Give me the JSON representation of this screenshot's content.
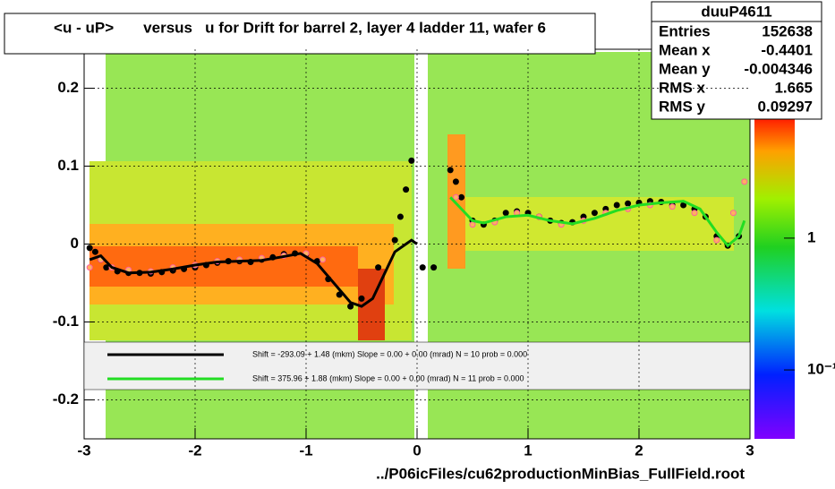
{
  "chart_data": {
    "type": "scatter",
    "title": "<u - uP>       versus   u for Drift for barrel 2, layer 4 ladder 11, wafer 6",
    "xlabel": "../P06icFiles/cu62productionMinBias_FullField.root",
    "xlim": [
      -3,
      3
    ],
    "ylim": [
      -0.25,
      0.25
    ],
    "xticks": [
      -3,
      -2,
      -1,
      0,
      1,
      2,
      3
    ],
    "yticks": [
      -0.2,
      -0.1,
      0,
      0.1,
      0.2
    ],
    "grid": true,
    "zlog": true,
    "zlim": [
      0.03,
      8
    ],
    "zticks": [
      {
        "value": 1,
        "label": "1"
      },
      {
        "value": 0.1,
        "label": "10⁻¹"
      }
    ],
    "stats": {
      "title": "duuP4611",
      "rows": [
        [
          "Entries",
          "152638"
        ],
        [
          "Mean x",
          "-0.4401"
        ],
        [
          "Mean y",
          "-0.004346"
        ],
        [
          "RMS x",
          "1.665"
        ],
        [
          "RMS y",
          "0.09297"
        ]
      ]
    },
    "fit_labels": [
      "Shift =  -293.09 + 1.48 (mkm) Slope =     0.00 + 0.00 (mrad)  N = 10 prob = 0.000",
      "Shift =   375.96 + 1.88 (mkm) Slope =     0.00 + 0.00 (mrad)  N = 11 prob = 0.000"
    ],
    "series": [
      {
        "color": "#000000",
        "mark": "dot",
        "x": [
          -2.95,
          -2.9,
          -2.85,
          -2.8,
          -2.7,
          -2.6,
          -2.5,
          -2.4,
          -2.3,
          -2.2,
          -2.1,
          -2.0,
          -1.9,
          -1.8,
          -1.7,
          -1.6,
          -1.5,
          -1.4,
          -1.3,
          -1.2,
          -1.1,
          -1.0,
          -0.9,
          -0.8,
          -0.7,
          -0.6,
          -0.5,
          -0.35,
          -0.2,
          -0.15,
          -0.1,
          -0.05,
          0.05,
          0.15,
          0.3,
          0.35,
          0.4,
          0.5,
          0.6,
          0.7,
          0.8,
          0.9,
          1.0,
          1.1,
          1.2,
          1.3,
          1.4,
          1.5,
          1.6,
          1.7,
          1.8,
          1.9,
          2.0,
          2.1,
          2.2,
          2.3,
          2.4,
          2.5,
          2.6,
          2.7,
          2.8,
          2.9
        ],
        "values": [
          -0.005,
          -0.01,
          -0.02,
          -0.03,
          -0.035,
          -0.037,
          -0.037,
          -0.038,
          -0.036,
          -0.034,
          -0.032,
          -0.03,
          -0.027,
          -0.024,
          -0.022,
          -0.022,
          -0.023,
          -0.02,
          -0.017,
          -0.013,
          -0.012,
          -0.013,
          -0.022,
          -0.045,
          -0.065,
          -0.08,
          -0.07,
          -0.03,
          0.005,
          0.035,
          0.07,
          0.107,
          -0.03,
          -0.03,
          0.095,
          0.08,
          0.06,
          0.03,
          0.025,
          0.03,
          0.04,
          0.042,
          0.04,
          0.035,
          0.03,
          0.027,
          0.028,
          0.035,
          0.04,
          0.045,
          0.05,
          0.052,
          0.053,
          0.055,
          0.054,
          0.05,
          0.05,
          0.045,
          0.035,
          0.01,
          -0.002,
          0.01
        ]
      },
      {
        "color": "#ff5f9f",
        "mark": "ring",
        "x": [
          -2.95,
          -2.85,
          -2.75,
          -2.6,
          -2.4,
          -2.2,
          -2.0,
          -1.8,
          -1.6,
          -1.4,
          -1.2,
          -1.0,
          -0.85,
          0.35,
          0.5,
          0.7,
          0.9,
          1.1,
          1.3,
          1.5,
          1.7,
          1.9,
          2.1,
          2.3,
          2.5,
          2.7,
          2.85,
          2.95
        ],
        "values": [
          -0.03,
          -0.02,
          -0.03,
          -0.033,
          -0.035,
          -0.03,
          -0.027,
          -0.022,
          -0.02,
          -0.018,
          -0.015,
          -0.012,
          -0.02,
          0.06,
          0.025,
          0.028,
          0.04,
          0.035,
          0.025,
          0.03,
          0.04,
          0.045,
          0.05,
          0.048,
          0.04,
          0.005,
          0.04,
          0.08
        ]
      },
      {
        "color": "#000000",
        "mark": "curve",
        "x": [
          -2.95,
          -2.85,
          -2.75,
          -2.6,
          -2.4,
          -2.2,
          -2.0,
          -1.8,
          -1.6,
          -1.4,
          -1.2,
          -1.05,
          -0.9,
          -0.75,
          -0.6,
          -0.5,
          -0.4,
          -0.3,
          -0.2,
          -0.1,
          -0.05,
          0.0
        ],
        "values": [
          -0.02,
          -0.015,
          -0.03,
          -0.037,
          -0.036,
          -0.032,
          -0.027,
          -0.023,
          -0.022,
          -0.021,
          -0.016,
          -0.012,
          -0.025,
          -0.05,
          -0.075,
          -0.08,
          -0.07,
          -0.04,
          -0.01,
          0.0,
          0.005,
          0.0
        ]
      },
      {
        "color": "#22dd22",
        "mark": "curve",
        "x": [
          0.3,
          0.4,
          0.5,
          0.6,
          0.8,
          1.0,
          1.2,
          1.4,
          1.6,
          1.8,
          2.0,
          2.2,
          2.4,
          2.55,
          2.7,
          2.8,
          2.9,
          2.95
        ],
        "values": [
          0.06,
          0.045,
          0.03,
          0.027,
          0.035,
          0.037,
          0.03,
          0.026,
          0.033,
          0.043,
          0.05,
          0.053,
          0.055,
          0.045,
          0.015,
          -0.002,
          0.01,
          0.03
        ]
      }
    ]
  }
}
